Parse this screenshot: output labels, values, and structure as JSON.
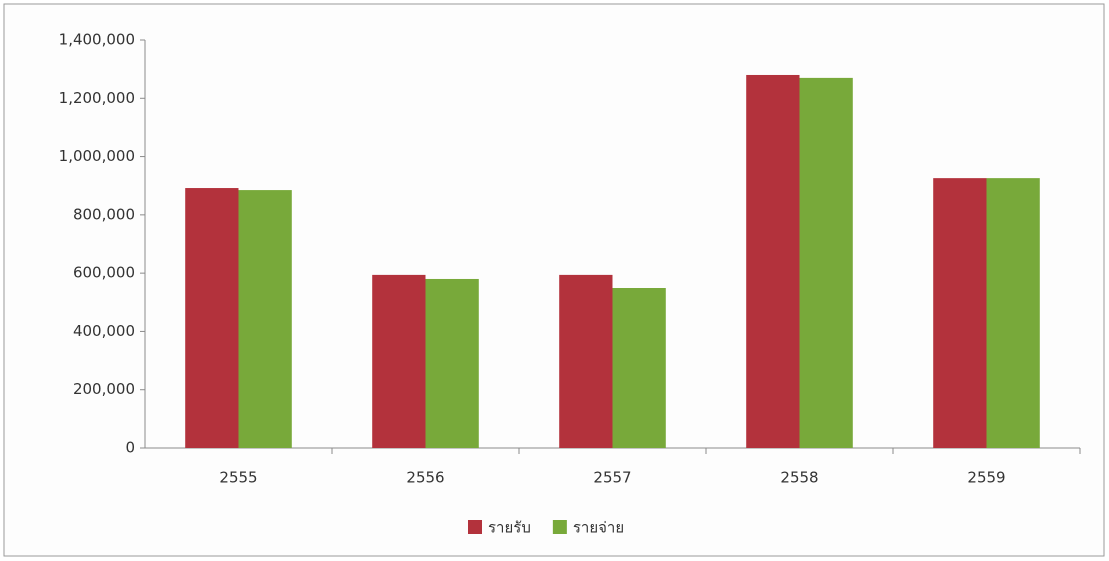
{
  "chart_data": {
    "type": "bar",
    "categories": [
      "2555",
      "2556",
      "2557",
      "2558",
      "2559"
    ],
    "series": [
      {
        "name": "รายรับ",
        "color": "#b3323c",
        "values": [
          892000,
          594000,
          594000,
          1280000,
          926000
        ]
      },
      {
        "name": "รายจ่าย",
        "color": "#78a93a",
        "values": [
          885000,
          580000,
          549000,
          1270000,
          926000
        ]
      }
    ],
    "ylim": [
      0,
      1400000
    ],
    "yticks": [
      0,
      {
        "value": 200000,
        "label": "200,000"
      },
      {
        "value": 400000,
        "label": "400,000"
      },
      {
        "value": 600000,
        "label": "600,000"
      },
      {
        "value": 800000,
        "label": "800,000"
      },
      {
        "value": 1000000,
        "label": "1,000,000"
      },
      {
        "value": 1200000,
        "label": "1,200,000"
      },
      {
        "value": 1400000,
        "label": "1,400,000"
      }
    ],
    "legend": "bottom"
  }
}
